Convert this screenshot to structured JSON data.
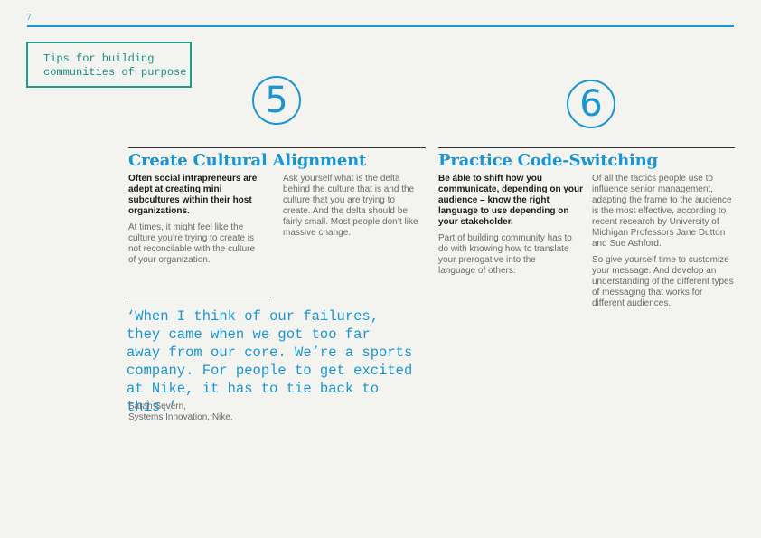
{
  "page_number": "7",
  "tag": "Tips for building\ncommunities of purpose",
  "sections": [
    {
      "number": "5",
      "title": "Create Cultural Alignment",
      "lead": "Often social intrapreneurs are adept at creating mini subcultures within their host organizations.",
      "body_1": "At times, it might feel like the culture you’re trying to create is not reconcilable with the culture of your organization.",
      "body_2": "Ask yourself what is the delta behind the culture that is and the culture that you are trying to create. And the delta should be fairly small. Most people don’t like massive change."
    },
    {
      "number": "6",
      "title": "Practice Code-Switching",
      "lead": "Be able to shift how you communicate, depending on your audience – know the right language to use depending on your stakeholder.",
      "body_1": "Part of building community has to do with knowing how to translate your prerogative into the language of others.",
      "body_2": "Of all the tactics people use to influence senior management, adapting the frame to the audience is the most effective, according to recent research by University of Michigan Professors Jane Dutton and Sue Ashford.",
      "body_3": "So give yourself time to customize your message. And develop an understanding of the different types of messaging that works for different audiences."
    }
  ],
  "quote": {
    "text": "‘When I think of our failures,\nthey came when we got too far\naway from our core. We’re a sports\ncompany. For people to get excited\nat Nike, it has to tie back to this.’",
    "attribution": "Sarah Severn,\nSystems Innovation, Nike."
  },
  "colors": {
    "accent_blue": "#1b95d2",
    "accent_green": "#1c9e8b",
    "background": "#f3f4f0"
  }
}
